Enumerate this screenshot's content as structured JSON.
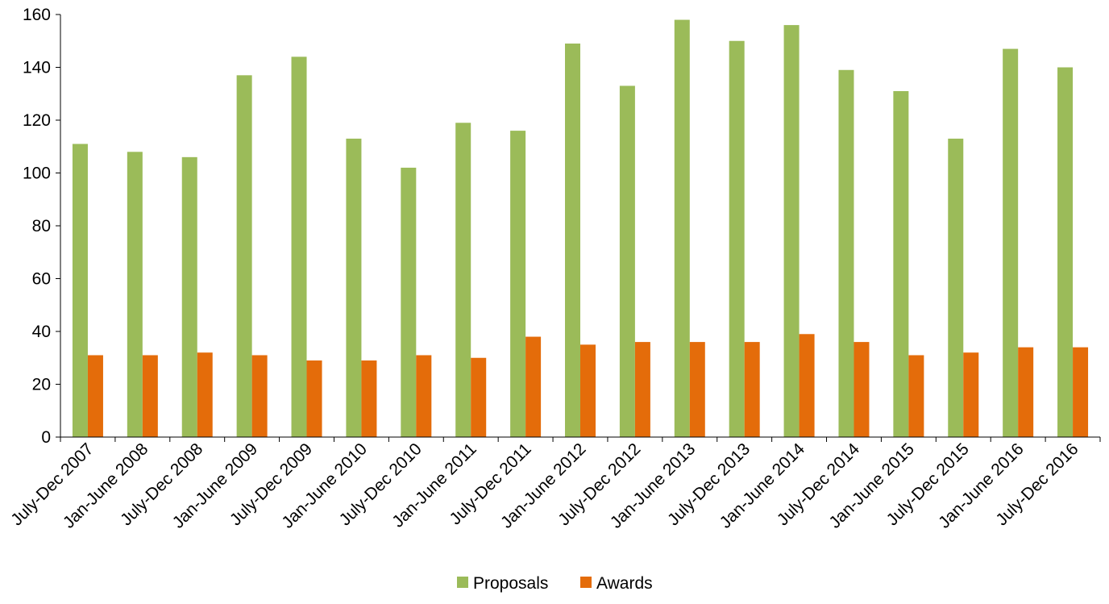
{
  "chart_data": {
    "type": "bar",
    "categories": [
      "July-Dec 2007",
      "Jan-June 2008",
      "July-Dec 2008",
      "Jan-June 2009",
      "July-Dec 2009",
      "Jan-June 2010",
      "July-Dec 2010",
      "Jan-June 2011",
      "July-Dec 2011",
      "Jan-June 2012",
      "July-Dec 2012",
      "Jan-June 2013",
      "July-Dec 2013",
      "Jan-June 2014",
      "July-Dec 2014",
      "Jan-June 2015",
      "July-Dec 2015",
      "Jan-June 2016",
      "July-Dec 2016"
    ],
    "series": [
      {
        "name": "Proposals",
        "color": "#9BBB59",
        "values": [
          111,
          108,
          106,
          137,
          144,
          113,
          102,
          119,
          116,
          149,
          133,
          158,
          150,
          156,
          139,
          131,
          113,
          147,
          140
        ]
      },
      {
        "name": "Awards",
        "color": "#E46C0A",
        "values": [
          31,
          31,
          32,
          31,
          29,
          29,
          31,
          30,
          38,
          35,
          36,
          36,
          36,
          39,
          36,
          31,
          32,
          34,
          34
        ]
      }
    ],
    "title": "",
    "xlabel": "",
    "ylabel": "",
    "ylim": [
      0,
      160
    ],
    "yticks": [
      0,
      20,
      40,
      60,
      80,
      100,
      120,
      140,
      160
    ],
    "grid": false,
    "legend": "bottom"
  }
}
